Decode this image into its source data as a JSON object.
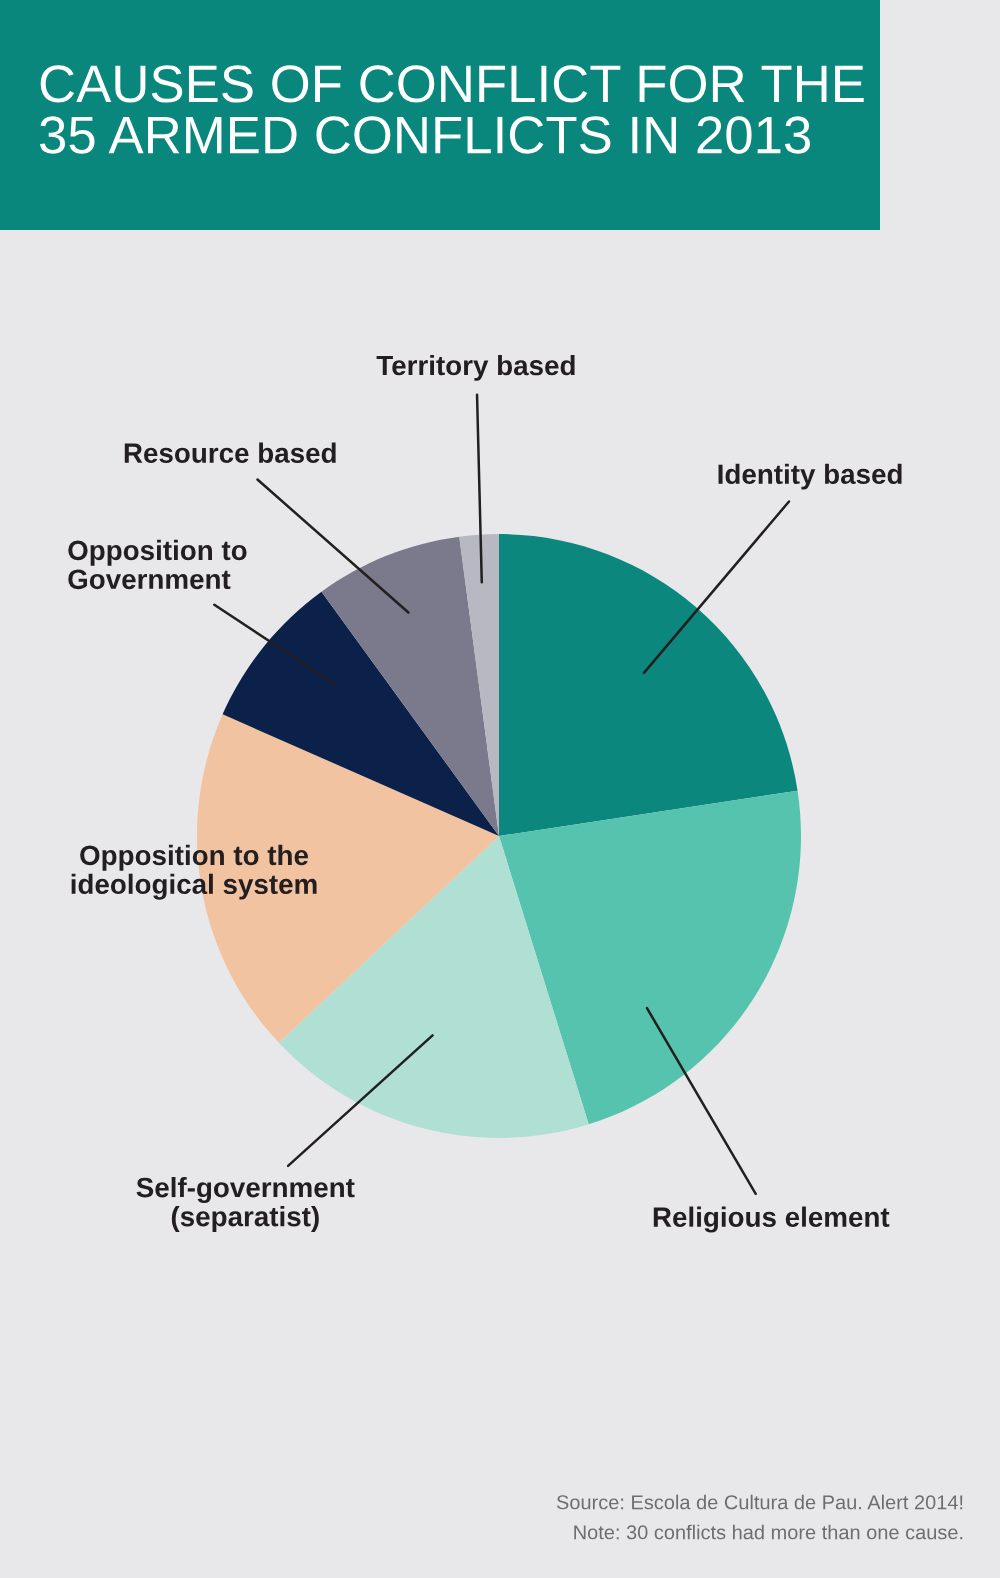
{
  "chart_data": {
    "type": "pie",
    "title": "CAUSES OF CONFLICT FOR THE\n35 ARMED CONFLICTS IN 2013",
    "categories": [
      "Identity based",
      "Religious element",
      "Self-government\n(separatist)",
      "Opposition to the\nideological system",
      "Opposition to\nGovernment",
      "Resource based",
      "Territory based"
    ],
    "values": [
      22.6,
      22.6,
      17.8,
      18.6,
      8.4,
      7.9,
      2.1
    ],
    "colors": [
      "#0b877d",
      "#55c3ad",
      "#b0dfd4",
      "#f1c3a0",
      "#0b2149",
      "#7b7a8c",
      "#b8b8c3"
    ],
    "annotations": [
      "Source: Escola de Cultura de Pau. Alert 2014!",
      "Note: 30 conflicts had more than one cause."
    ]
  }
}
